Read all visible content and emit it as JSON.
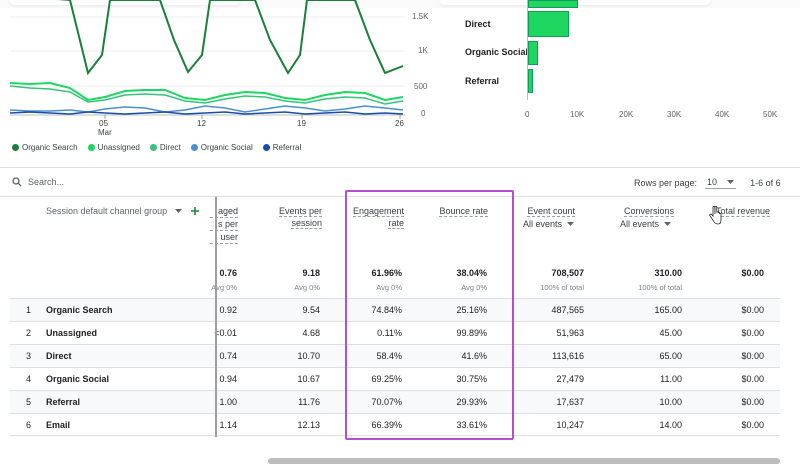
{
  "line_chart": {
    "y_ticks": [
      "1.5K",
      "1K",
      "500",
      "0"
    ],
    "x_ticks": [
      {
        "day": "05",
        "month": "Mar"
      },
      {
        "day": "12",
        "month": ""
      },
      {
        "day": "19",
        "month": ""
      },
      {
        "day": "26",
        "month": ""
      }
    ],
    "legend": [
      {
        "name": "Organic Search",
        "color": "#188038"
      },
      {
        "name": "Unassigned",
        "color": "#1ed760"
      },
      {
        "name": "Direct",
        "color": "#34c47c"
      },
      {
        "name": "Organic Social",
        "color": "#4a8fd6"
      },
      {
        "name": "Referral",
        "color": "#174ea6"
      }
    ]
  },
  "bar_chart": {
    "categories": [
      "Direct",
      "Organic Social",
      "Referral"
    ],
    "values": [
      8000,
      1800,
      900
    ],
    "x_ticks": [
      "0",
      "10K",
      "20K",
      "30K",
      "40K",
      "50K"
    ],
    "color": "#1ed760"
  },
  "toolbar": {
    "search_placeholder": "Search...",
    "rows_per_page_label": "Rows per page:",
    "rows_per_page_value": "10",
    "pagination": "1-6 of 6"
  },
  "table": {
    "dimension_header": "Session default channel group",
    "columns": [
      {
        "line1": "aged",
        "line2": "s per",
        "line3": "user"
      },
      {
        "line1": "Events per",
        "line2": "session",
        "line3": ""
      },
      {
        "line1": "Engagement",
        "line2": "rate",
        "line3": ""
      },
      {
        "line1": "Bounce rate",
        "line2": "",
        "line3": ""
      },
      {
        "line1": "Event count",
        "line2": "",
        "line3": ""
      },
      {
        "line1": "Conversions",
        "line2": "",
        "line3": ""
      },
      {
        "line1": "Total revenue",
        "line2": "",
        "line3": ""
      }
    ],
    "event_filter": "All events",
    "conv_filter": "All events",
    "totals": [
      {
        "value": "0.76",
        "sub": "Avg 0%"
      },
      {
        "value": "9.18",
        "sub": "Avg 0%"
      },
      {
        "value": "61.96%",
        "sub": "Avg 0%"
      },
      {
        "value": "38.04%",
        "sub": "Avg 0%"
      },
      {
        "value": "708,507",
        "sub": "100% of total"
      },
      {
        "value": "310.00",
        "sub": "100% of total"
      },
      {
        "value": "$0.00",
        "sub": ""
      }
    ],
    "rows": [
      {
        "index": "1",
        "name": "Organic Search",
        "c1": "0.92",
        "c2": "9.54",
        "c3": "74.84%",
        "c4": "25.16%",
        "c5": "487,565",
        "c6": "165.00",
        "c7": "$0.00"
      },
      {
        "index": "2",
        "name": "Unassigned",
        "c1": "<0.01",
        "c2": "4.68",
        "c3": "0.11%",
        "c4": "99.89%",
        "c5": "51,963",
        "c6": "45.00",
        "c7": "$0.00"
      },
      {
        "index": "3",
        "name": "Direct",
        "c1": "0.74",
        "c2": "10.70",
        "c3": "58.4%",
        "c4": "41.6%",
        "c5": "113,616",
        "c6": "65.00",
        "c7": "$0.00"
      },
      {
        "index": "4",
        "name": "Organic Social",
        "c1": "0.94",
        "c2": "10.67",
        "c3": "69.25%",
        "c4": "30.75%",
        "c5": "27,479",
        "c6": "11.00",
        "c7": "$0.00"
      },
      {
        "index": "5",
        "name": "Referral",
        "c1": "1.00",
        "c2": "11.76",
        "c3": "70.07%",
        "c4": "29.93%",
        "c5": "17,637",
        "c6": "10.00",
        "c7": "$0.00"
      },
      {
        "index": "6",
        "name": "Email",
        "c1": "1.14",
        "c2": "12.13",
        "c3": "66.39%",
        "c4": "33.61%",
        "c5": "10,247",
        "c6": "14.00",
        "c7": "$0.00"
      }
    ]
  },
  "colors": {
    "highlight": "#b44fd1",
    "accent_green": "#1e8e3e"
  }
}
